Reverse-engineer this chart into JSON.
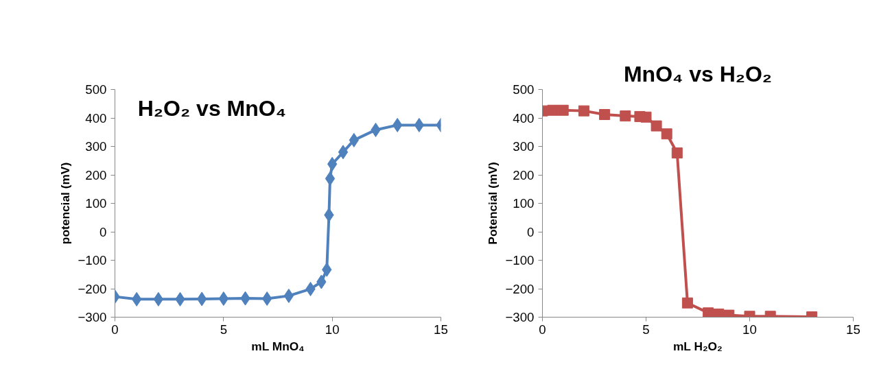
{
  "chart_data": [
    {
      "type": "line",
      "title": "H₂O₂ vs MnO₄",
      "xlabel": "mL MnO₄",
      "ylabel": "potencial (mV)",
      "marker": "diamond",
      "line_style": "solid",
      "grid": false,
      "xlim": [
        0,
        15
      ],
      "xticks": [
        0,
        5,
        10,
        15
      ],
      "ylim": [
        -300,
        500
      ],
      "yticks": [
        -300,
        -200,
        -100,
        0,
        100,
        200,
        300,
        400,
        500
      ],
      "series": [
        {
          "color": "#4f81bd",
          "x": [
            0,
            1,
            2,
            3,
            4,
            5,
            6,
            7,
            8,
            9,
            9.5,
            9.75,
            9.85,
            9.9,
            10,
            10.5,
            11,
            12,
            13,
            14,
            15
          ],
          "values": [
            -228,
            -237,
            -237,
            -237,
            -236,
            -235,
            -234,
            -235,
            -225,
            -201,
            -176,
            -133,
            59,
            187,
            238,
            280,
            322,
            358,
            375,
            375,
            375
          ]
        }
      ]
    },
    {
      "type": "line",
      "title": "MnO₄ vs H₂O₂",
      "xlabel": "mL H₂O₂",
      "ylabel": "Potencial (mV)",
      "marker": "square",
      "line_style": "solid",
      "grid": false,
      "xlim": [
        0,
        15
      ],
      "xticks": [
        0,
        5,
        10,
        15
      ],
      "ylim": [
        -300,
        500
      ],
      "yticks": [
        -300,
        -200,
        -100,
        0,
        100,
        200,
        300,
        400,
        500
      ],
      "series": [
        {
          "color": "#c0504d",
          "x": [
            0,
            0.5,
            1,
            2,
            3,
            4,
            4.7,
            5,
            5.5,
            6,
            6.5,
            7,
            8,
            8.5,
            9,
            10,
            11,
            13
          ],
          "values": [
            425,
            427,
            427,
            425,
            412,
            407,
            405,
            403,
            372,
            344,
            277,
            -250,
            -285,
            -289,
            -293,
            -297,
            -297,
            -299
          ]
        }
      ]
    }
  ]
}
